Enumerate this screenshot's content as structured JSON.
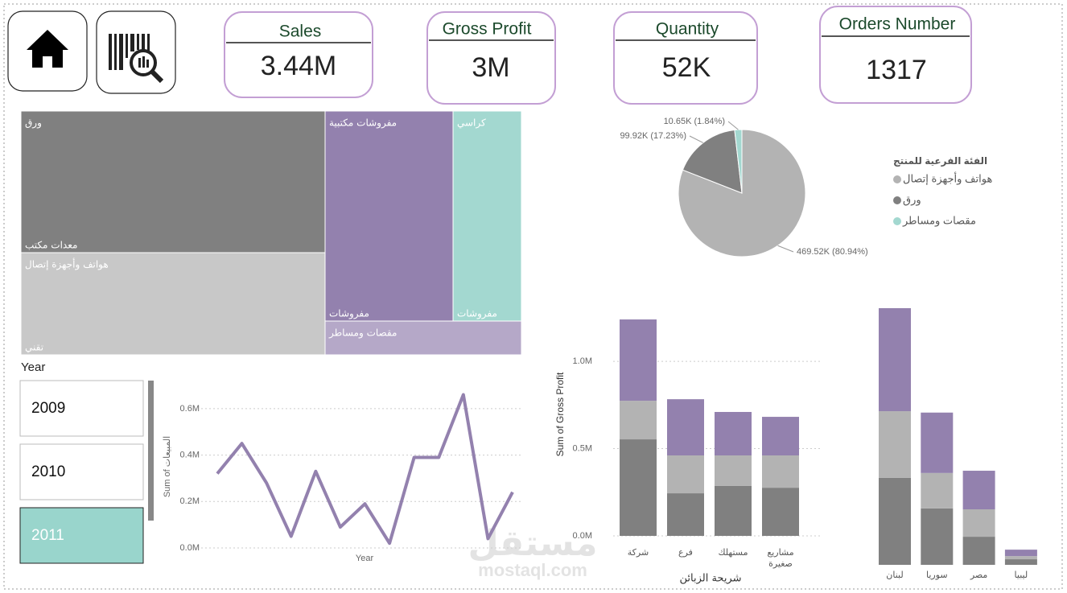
{
  "cards": [
    {
      "title": "Sales",
      "value": "3.44M"
    },
    {
      "title": "Gross Profit",
      "value": "3M"
    },
    {
      "title": "Quantity",
      "value": "52K"
    },
    {
      "title": "Orders Number",
      "value": "1317"
    }
  ],
  "treemap": {
    "cells": [
      {
        "label": "ورق",
        "group": "معدات مكتب",
        "color": "#808080"
      },
      {
        "label": "هواتف وأجهزة إتصال",
        "group": "تقني",
        "color": "#c8c8c8"
      },
      {
        "label": "مفروشات مكتبية",
        "group": "مفروشات",
        "color": "#9381ae"
      },
      {
        "label": "كراسي",
        "group": "مفروشات",
        "color": "#a3d8d0"
      },
      {
        "label": "مقصات ومساطر",
        "color": "#b5a8c8"
      }
    ]
  },
  "slicer": {
    "title": "Year",
    "items": [
      "2009",
      "2010",
      "2011"
    ],
    "selected": 2,
    "selected_color": "#99d5cc"
  },
  "watermark": [
    "مستقل",
    "mostaql.com"
  ],
  "chart_data": [
    {
      "type": "line",
      "x_label": "Year",
      "y_label": "Sum of المبيعات",
      "color": "#9381ae",
      "categories": [
        null,
        null,
        null,
        null,
        null,
        null,
        null,
        null,
        null,
        null,
        null,
        null,
        null
      ],
      "values": [
        0.32,
        0.45,
        0.28,
        0.05,
        0.33,
        0.09,
        0.19,
        0.02,
        0.39,
        0.39,
        0.66,
        0.04,
        0.24
      ],
      "ylim": [
        0,
        0.7
      ],
      "yticks": [
        {
          "value": 0,
          "label": "0.0M"
        },
        {
          "value": 0.2,
          "label": "0.2M"
        },
        {
          "value": 0.4,
          "label": "0.4M"
        },
        {
          "value": 0.6,
          "label": "0.6M"
        }
      ],
      "grid": true
    },
    {
      "type": "pie",
      "legend_title": "الفئة الفرعية للمنتج",
      "categories": [
        "هواتف وأجهزة إتصال",
        "ورق",
        "مقصات ومساطر"
      ],
      "values": [
        469.52,
        99.92,
        10.65
      ],
      "value_labels": [
        "469.52K (80.94%)",
        "99.92K (17.23%)",
        "10.65K (1.84%)"
      ],
      "colors": [
        "#b3b3b3",
        "#808080",
        "#a3d8d0"
      ]
    },
    {
      "type": "bar",
      "x_label": "شريحة الزبائن",
      "y_label": "Sum of Gross Profit",
      "categories": [
        "شركة",
        "فرع",
        "مستهلك",
        "مشاريع صغيرة"
      ],
      "series": [
        {
          "color": "#808080",
          "values": [
            0.553,
            0.244,
            0.286,
            0.276
          ]
        },
        {
          "color": "#b3b3b3",
          "values": [
            0.221,
            0.217,
            0.175,
            0.185
          ]
        },
        {
          "color": "#9381ae",
          "values": [
            0.466,
            0.322,
            0.249,
            0.221
          ]
        }
      ],
      "ylim": [
        0,
        1.3
      ],
      "yticks": [
        {
          "value": 0,
          "label": "0.0M"
        },
        {
          "value": 0.5,
          "label": "0.5M"
        },
        {
          "value": 1,
          "label": "1.0M"
        }
      ],
      "grid": true
    },
    {
      "type": "bar",
      "categories": [
        "لبنان",
        "سوريا",
        "مصر",
        "ليبيا"
      ],
      "series": [
        {
          "color": "#808080",
          "values": [
            0.498,
            0.323,
            0.161,
            0.032
          ]
        },
        {
          "color": "#b3b3b3",
          "values": [
            0.382,
            0.203,
            0.157,
            0.018
          ]
        },
        {
          "color": "#9381ae",
          "values": [
            0.59,
            0.346,
            0.221,
            0.037
          ]
        }
      ],
      "ylim": [
        0,
        1.5
      ]
    }
  ]
}
